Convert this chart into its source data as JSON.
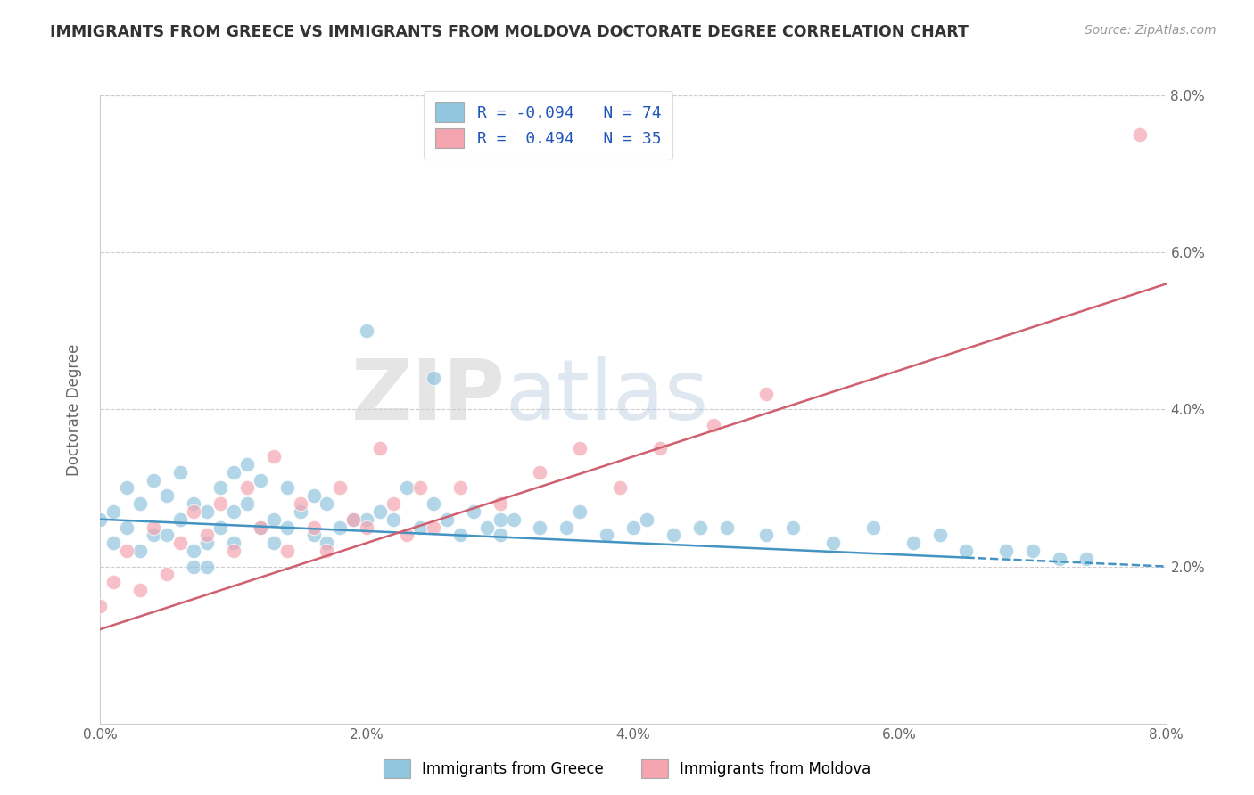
{
  "title": "IMMIGRANTS FROM GREECE VS IMMIGRANTS FROM MOLDOVA DOCTORATE DEGREE CORRELATION CHART",
  "source": "Source: ZipAtlas.com",
  "ylabel": "Doctorate Degree",
  "xlabel_blue": "Immigrants from Greece",
  "xlabel_pink": "Immigrants from Moldova",
  "x_min": 0.0,
  "x_max": 0.08,
  "y_min": 0.0,
  "y_max": 0.08,
  "y_ticks": [
    0.02,
    0.04,
    0.06,
    0.08
  ],
  "y_tick_labels": [
    "2.0%",
    "4.0%",
    "6.0%",
    "8.0%"
  ],
  "x_ticks": [
    0.0,
    0.02,
    0.04,
    0.06,
    0.08
  ],
  "x_tick_labels": [
    "0.0%",
    "2.0%",
    "4.0%",
    "6.0%",
    "8.0%"
  ],
  "r_blue": -0.094,
  "n_blue": 74,
  "r_pink": 0.494,
  "n_pink": 35,
  "color_blue": "#92c5de",
  "color_pink": "#f4a5b0",
  "line_color_blue": "#4393c3",
  "line_color_pink": "#d06070",
  "watermark_zip": "ZIP",
  "watermark_atlas": "atlas",
  "blue_intercept": 0.026,
  "blue_slope": -0.075,
  "pink_intercept": 0.012,
  "pink_slope": 0.55,
  "blue_x": [
    0.0,
    0.001,
    0.001,
    0.002,
    0.002,
    0.003,
    0.003,
    0.004,
    0.004,
    0.005,
    0.005,
    0.006,
    0.006,
    0.007,
    0.007,
    0.007,
    0.008,
    0.008,
    0.008,
    0.009,
    0.009,
    0.01,
    0.01,
    0.01,
    0.011,
    0.011,
    0.012,
    0.012,
    0.013,
    0.013,
    0.014,
    0.014,
    0.015,
    0.016,
    0.016,
    0.017,
    0.017,
    0.018,
    0.019,
    0.02,
    0.021,
    0.022,
    0.023,
    0.024,
    0.025,
    0.026,
    0.027,
    0.028,
    0.029,
    0.03,
    0.031,
    0.033,
    0.035,
    0.036,
    0.038,
    0.04,
    0.041,
    0.043,
    0.045,
    0.047,
    0.05,
    0.052,
    0.055,
    0.058,
    0.061,
    0.063,
    0.065,
    0.068,
    0.07,
    0.072,
    0.074,
    0.02,
    0.025,
    0.03
  ],
  "blue_y": [
    0.026,
    0.027,
    0.023,
    0.03,
    0.025,
    0.028,
    0.022,
    0.031,
    0.024,
    0.029,
    0.024,
    0.032,
    0.026,
    0.028,
    0.022,
    0.02,
    0.027,
    0.023,
    0.02,
    0.03,
    0.025,
    0.032,
    0.027,
    0.023,
    0.033,
    0.028,
    0.031,
    0.025,
    0.026,
    0.023,
    0.03,
    0.025,
    0.027,
    0.029,
    0.024,
    0.028,
    0.023,
    0.025,
    0.026,
    0.026,
    0.027,
    0.026,
    0.03,
    0.025,
    0.028,
    0.026,
    0.024,
    0.027,
    0.025,
    0.026,
    0.026,
    0.025,
    0.025,
    0.027,
    0.024,
    0.025,
    0.026,
    0.024,
    0.025,
    0.025,
    0.024,
    0.025,
    0.023,
    0.025,
    0.023,
    0.024,
    0.022,
    0.022,
    0.022,
    0.021,
    0.021,
    0.05,
    0.044,
    0.024
  ],
  "pink_x": [
    0.0,
    0.001,
    0.002,
    0.003,
    0.004,
    0.005,
    0.006,
    0.007,
    0.008,
    0.009,
    0.01,
    0.011,
    0.012,
    0.013,
    0.014,
    0.015,
    0.016,
    0.017,
    0.018,
    0.019,
    0.02,
    0.021,
    0.022,
    0.023,
    0.024,
    0.025,
    0.027,
    0.03,
    0.033,
    0.036,
    0.039,
    0.042,
    0.046,
    0.05,
    0.078
  ],
  "pink_y": [
    0.015,
    0.018,
    0.022,
    0.017,
    0.025,
    0.019,
    0.023,
    0.027,
    0.024,
    0.028,
    0.022,
    0.03,
    0.025,
    0.034,
    0.022,
    0.028,
    0.025,
    0.022,
    0.03,
    0.026,
    0.025,
    0.035,
    0.028,
    0.024,
    0.03,
    0.025,
    0.03,
    0.028,
    0.032,
    0.035,
    0.03,
    0.035,
    0.038,
    0.042,
    0.075
  ]
}
